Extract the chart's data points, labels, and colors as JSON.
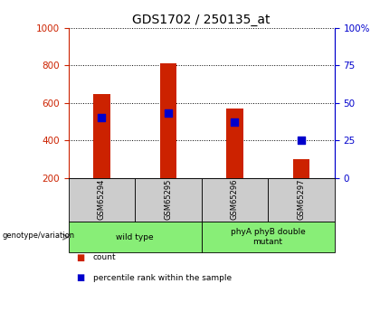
{
  "title": "GDS1702 / 250135_at",
  "samples": [
    "GSM65294",
    "GSM65295",
    "GSM65296",
    "GSM65297"
  ],
  "counts": [
    650,
    810,
    570,
    300
  ],
  "percentiles": [
    40,
    43,
    37,
    25
  ],
  "bar_bottom": 200,
  "ylim_left": [
    200,
    1000
  ],
  "ylim_right": [
    0,
    100
  ],
  "yticks_left": [
    200,
    400,
    600,
    800,
    1000
  ],
  "yticks_right": [
    0,
    25,
    50,
    75,
    100
  ],
  "bar_color": "#cc2200",
  "dot_color": "#0000cc",
  "group_labels": [
    "wild type",
    "phyA phyB double\nmutant"
  ],
  "group_ranges": [
    [
      0,
      1
    ],
    [
      2,
      3
    ]
  ],
  "group_bg_color": "#88ee77",
  "sample_bg_color": "#cccccc",
  "title_fontsize": 10,
  "tick_fontsize": 7.5,
  "bar_width": 0.25
}
